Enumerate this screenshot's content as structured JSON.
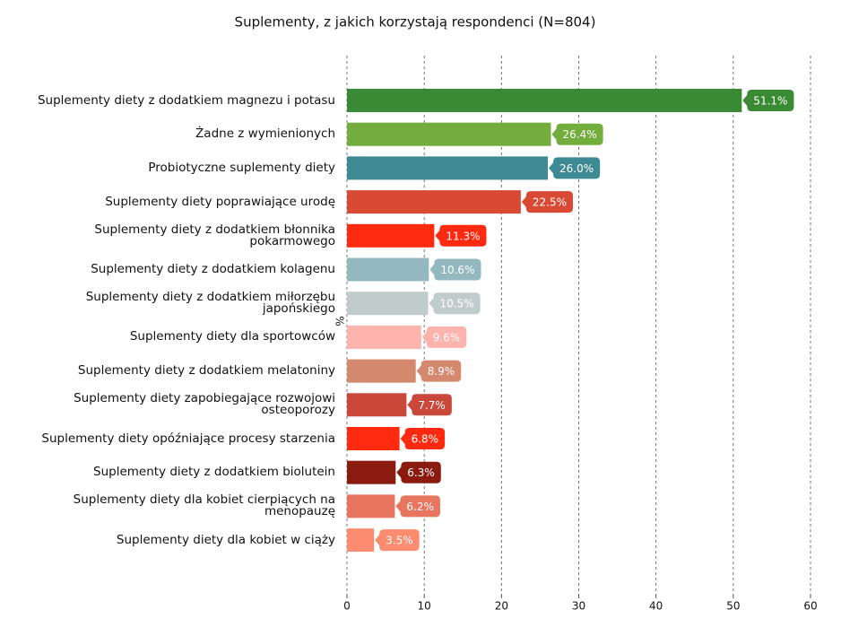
{
  "chart_data": {
    "type": "barh",
    "title": "Suplementy, z jakich korzystają respondenci (N=804)",
    "value_axis_label": "%",
    "categories": [
      "Suplementy diety z dodatkiem magnezu i potasu",
      "Żadne z wymienionych",
      "Probiotyczne suplementy diety",
      "Suplementy diety poprawiające urodę",
      "Suplementy diety z dodatkiem błonnika pokarmowego",
      "Suplementy diety z dodatkiem kolagenu",
      "Suplementy diety z dodatkiem miłorzębu japońskiego",
      "Suplementy diety dla sportowców",
      "Suplementy diety z dodatkiem melatoniny",
      "Suplementy diety zapobiegające rozwojowi osteoporozy",
      "Suplementy diety opóźniające procesy starzenia",
      "Suplementy diety z dodatkiem biolutein",
      "Suplementy diety dla kobiet cierpiących na menopauzę",
      "Suplementy diety dla kobiet w ciąży"
    ],
    "values": [
      51.1,
      26.4,
      26.0,
      22.5,
      11.3,
      10.6,
      10.5,
      9.6,
      8.9,
      7.7,
      6.8,
      6.3,
      6.2,
      3.5
    ],
    "value_labels": [
      "51.1%",
      "26.4%",
      "26.0%",
      "22.5%",
      "11.3%",
      "10.6%",
      "10.5%",
      "9.6%",
      "8.9%",
      "7.7%",
      "6.8%",
      "6.3%",
      "6.2%",
      "3.5%"
    ],
    "colors": [
      "#3a8a35",
      "#72ad3e",
      "#3e8a94",
      "#d94a35",
      "#ff2a0f",
      "#93b8bf",
      "#c0cccc",
      "#ffb3ad",
      "#d4896e",
      "#c9483a",
      "#ff2a0f",
      "#8b1a10",
      "#e8765f",
      "#fc8c6f"
    ],
    "xlim": [
      0,
      60
    ],
    "xticks": [
      0,
      10,
      20,
      30,
      40,
      50,
      60
    ],
    "grid": true
  }
}
